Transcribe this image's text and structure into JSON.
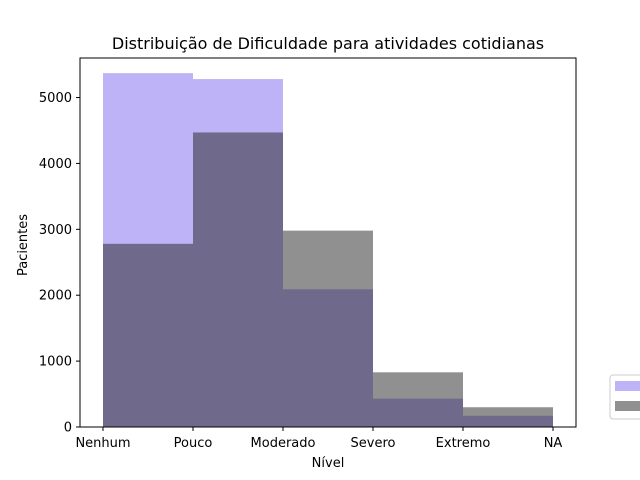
{
  "chart_data": {
    "type": "bar",
    "title": "Distribuição de Dificuldade para atividades cotidianas",
    "xlabel": "Nível",
    "ylabel": "Pacientes",
    "x_ticks": [
      "Nenhum",
      "Pouco",
      "Moderado",
      "Severo",
      "Extremo",
      "NA"
    ],
    "categories": [
      "Nenhum",
      "Pouco",
      "Moderado",
      "Severo",
      "Extremo"
    ],
    "ylim": [
      0,
      5600
    ],
    "y_ticks": [
      0,
      1000,
      2000,
      3000,
      4000,
      5000
    ],
    "grid": false,
    "legend_position": "right, outside plot (clipped)",
    "series": [
      {
        "values": [
          5370,
          5280,
          2090,
          430,
          170
        ],
        "color": "#7b68ee",
        "alpha": 0.5
      },
      {
        "values": [
          2780,
          4470,
          2980,
          830,
          300
        ],
        "color": "#222222",
        "alpha": 0.5
      }
    ]
  }
}
